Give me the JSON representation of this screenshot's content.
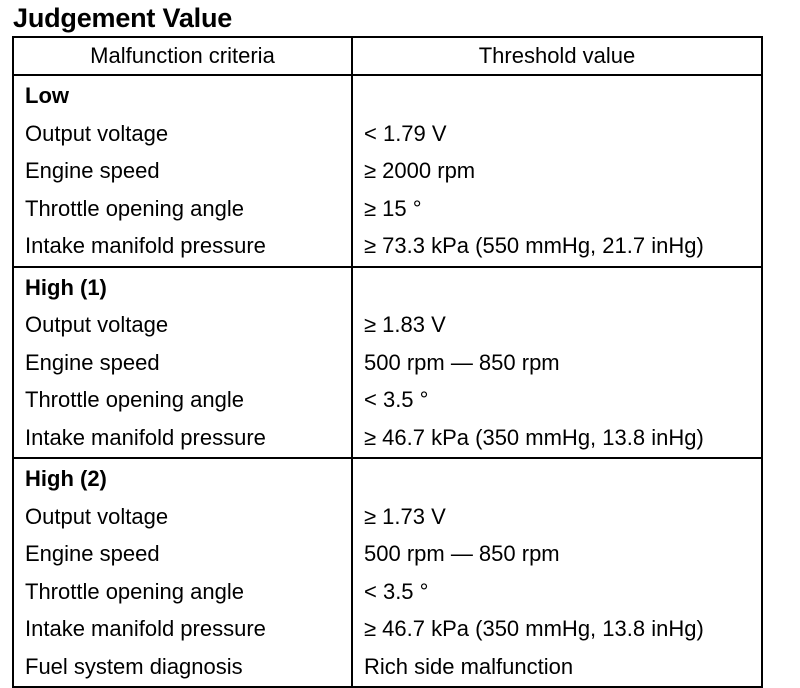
{
  "title": "Judgement Value",
  "table": {
    "headers": [
      "Malfunction criteria",
      "Threshold value"
    ],
    "groups": [
      {
        "name": "Low",
        "rows": [
          [
            "Output voltage",
            "< 1.79 V"
          ],
          [
            "Engine speed",
            "≥ 2000 rpm"
          ],
          [
            "Throttle opening angle",
            "≥ 15 °"
          ],
          [
            "Intake manifold pressure",
            "≥ 73.3 kPa (550 mmHg, 21.7 inHg)"
          ]
        ]
      },
      {
        "name": "High (1)",
        "rows": [
          [
            "Output voltage",
            "≥ 1.83 V"
          ],
          [
            "Engine speed",
            "500 rpm — 850 rpm"
          ],
          [
            "Throttle opening angle",
            "< 3.5 °"
          ],
          [
            "Intake manifold pressure",
            "≥ 46.7 kPa (350 mmHg, 13.8 inHg)"
          ]
        ]
      },
      {
        "name": "High (2)",
        "rows": [
          [
            "Output voltage",
            "≥ 1.73 V"
          ],
          [
            "Engine speed",
            "500 rpm — 850 rpm"
          ],
          [
            "Throttle opening angle",
            "< 3.5 °"
          ],
          [
            "Intake manifold pressure",
            "≥ 46.7 kPa (350 mmHg, 13.8 inHg)"
          ],
          [
            "Fuel system diagnosis",
            "Rich side malfunction"
          ]
        ]
      }
    ]
  }
}
